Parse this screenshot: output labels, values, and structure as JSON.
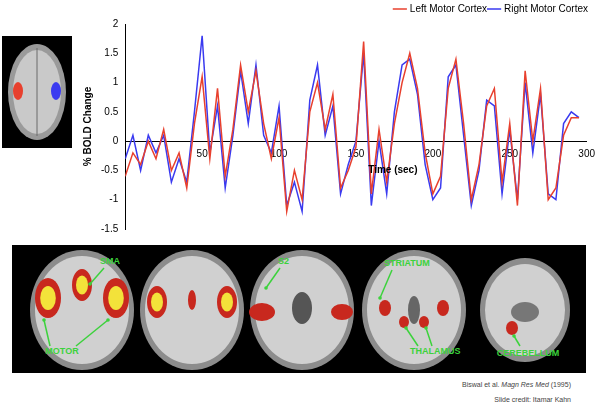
{
  "chart_data": {
    "type": "line",
    "x_label": "Time (sec)",
    "y_label": "% BOLD Change",
    "x": [
      0,
      5,
      10,
      15,
      20,
      25,
      30,
      35,
      40,
      45,
      50,
      55,
      60,
      65,
      70,
      75,
      80,
      85,
      90,
      95,
      100,
      105,
      110,
      115,
      120,
      125,
      130,
      135,
      140,
      145,
      150,
      155,
      160,
      165,
      170,
      175,
      180,
      185,
      190,
      195,
      200,
      205,
      210,
      215,
      220,
      225,
      230,
      235,
      240,
      245,
      250,
      255,
      260,
      265,
      270,
      275,
      280,
      285,
      290,
      295
    ],
    "series": [
      {
        "name": "Left Motor Cortex",
        "color": "#e8402e",
        "values": [
          -0.6,
          -0.2,
          -0.4,
          0.0,
          -0.3,
          0.2,
          -0.5,
          -0.2,
          -0.8,
          0.3,
          1.1,
          -0.3,
          0.9,
          -0.6,
          0.2,
          1.3,
          0.5,
          1.2,
          0.3,
          -0.3,
          0.4,
          -1.2,
          -0.5,
          -1.0,
          0.5,
          1.0,
          0.2,
          0.8,
          -0.8,
          -0.5,
          -0.1,
          1.7,
          -0.9,
          0.2,
          -0.7,
          0.3,
          1.0,
          1.5,
          0.9,
          -0.2,
          -0.9,
          -0.6,
          0.9,
          1.4,
          0.3,
          -1.0,
          -0.4,
          0.6,
          0.9,
          -0.7,
          0.3,
          -1.1,
          1.2,
          0.0,
          0.9,
          -1.0,
          -0.8,
          0.1,
          0.4,
          0.4
        ]
      },
      {
        "name": "Right Motor Cortex",
        "color": "#3a3af0",
        "values": [
          -0.3,
          0.1,
          -0.5,
          0.1,
          -0.2,
          0.1,
          -0.7,
          -0.3,
          -0.7,
          0.5,
          1.8,
          -0.2,
          0.6,
          -0.8,
          0.1,
          1.2,
          0.3,
          1.3,
          0.1,
          -0.2,
          0.6,
          -1.1,
          -0.7,
          -1.2,
          0.7,
          1.3,
          0.1,
          0.6,
          -0.9,
          -0.4,
          0.0,
          1.5,
          -1.1,
          0.0,
          -0.9,
          0.5,
          1.3,
          1.4,
          0.8,
          -0.4,
          -1.0,
          -0.8,
          1.1,
          1.3,
          0.1,
          -1.1,
          -0.5,
          0.7,
          0.6,
          -0.9,
          0.2,
          -1.0,
          1.0,
          -0.2,
          0.8,
          -0.9,
          -1.0,
          0.3,
          0.5,
          0.4
        ]
      }
    ],
    "xlim": [
      0,
      300
    ],
    "xticks": [
      50,
      100,
      150,
      200,
      250,
      300
    ],
    "ylim": [
      -1.5,
      2
    ],
    "yticks": [
      -1.5,
      -1,
      -0.5,
      0,
      0.5,
      1,
      1.5,
      2
    ],
    "grid": false,
    "legend": "top-right"
  },
  "figure": {
    "region_labels": [
      "SMA",
      "MOTOR",
      "S2",
      "STRIATUM",
      "THALAMUS",
      "CEREBELLUM"
    ],
    "citation": {
      "authors": "Biswal et al.",
      "journal": "Magn Res Med",
      "year": "(1995)"
    },
    "credit": "Slide credit:  Itamar Kahn"
  }
}
